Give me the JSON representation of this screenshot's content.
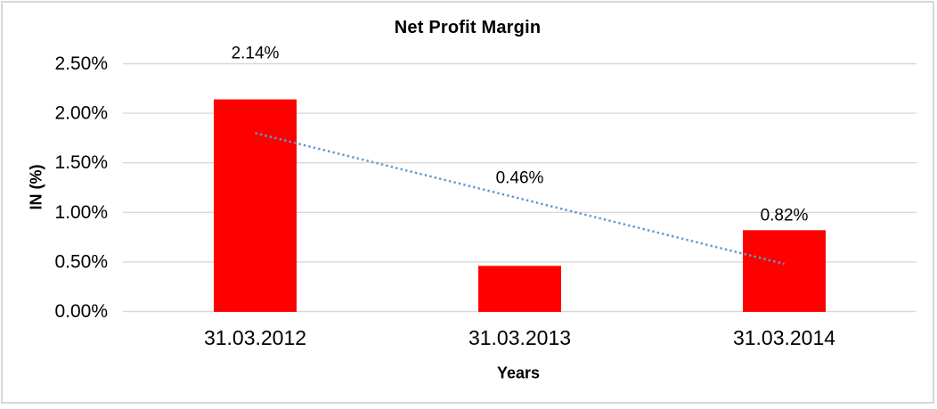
{
  "chart_data": {
    "type": "bar",
    "title": "Net Profit Margin",
    "xlabel": "Years",
    "ylabel": "IN (%)",
    "categories": [
      "31.03.2012",
      "31.03.2013",
      "31.03.2014"
    ],
    "values": [
      2.14,
      0.46,
      0.82
    ],
    "data_labels": [
      "2.14%",
      "0.46%",
      "0.82%"
    ],
    "y_ticks": [
      "0.00%",
      "0.50%",
      "1.00%",
      "1.50%",
      "2.00%",
      "2.50%"
    ],
    "ylim": [
      0,
      2.5
    ],
    "grid": "horizontal",
    "legend": "none",
    "bar_color": "#FF0000",
    "gridline_color": "#D9D9D9",
    "trendline": {
      "type": "linear",
      "line_style": "dotted",
      "color": "#5B9BD5",
      "fitted_endpoints": [
        1.8,
        0.48
      ]
    }
  }
}
